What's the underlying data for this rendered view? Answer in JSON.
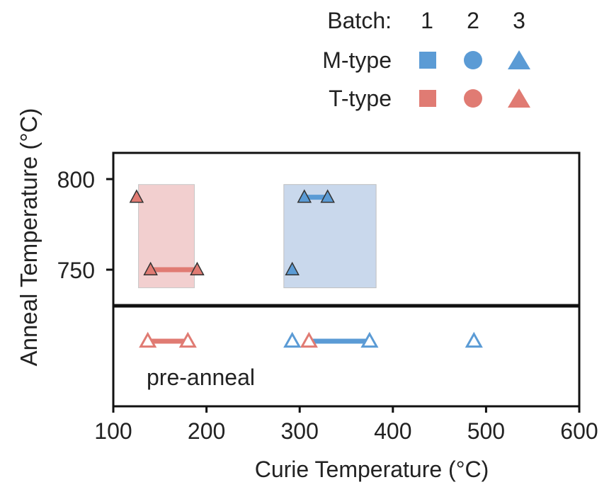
{
  "chart_data": {
    "type": "scatter",
    "xlabel": "Curie Temperature (°C)",
    "ylabel": "Anneal Temperature (°C)",
    "xlim": [
      100,
      600
    ],
    "x_ticks": [
      "100",
      "200",
      "300",
      "400",
      "500",
      "600"
    ],
    "y_ticks": [
      "800",
      "750"
    ],
    "annotation": "pre-anneal",
    "colors": {
      "M-type": "#5b9bd5",
      "T-type": "#e07b73"
    },
    "legend": {
      "placement": "top-right",
      "batch_label": "Batch:",
      "batches": [
        "1",
        "2",
        "3"
      ],
      "rows": [
        {
          "name": "M-type",
          "color": "#5b9bd5"
        },
        {
          "name": "T-type",
          "color": "#e07b73"
        }
      ],
      "markers": [
        "square",
        "circle",
        "triangle"
      ]
    },
    "series": [
      {
        "name": "T-type",
        "batch": "3",
        "color": "#e07b73",
        "points": [
          {
            "x": 125,
            "anneal": 790
          },
          {
            "x": 140,
            "anneal": 750
          },
          {
            "x": 190,
            "anneal": 750
          },
          {
            "x": 137,
            "anneal": "pre-anneal"
          },
          {
            "x": 180,
            "anneal": "pre-anneal"
          },
          {
            "x": 310,
            "anneal": "pre-anneal"
          }
        ],
        "ranges": [
          {
            "from": 140,
            "to": 190,
            "anneal": 750
          },
          {
            "from": 137,
            "to": 180,
            "anneal": "pre-anneal"
          }
        ],
        "shaded_region": {
          "x": [
            127,
            187
          ],
          "anneal": [
            740,
            797
          ]
        }
      },
      {
        "name": "M-type",
        "batch": "3",
        "color": "#5b9bd5",
        "points": [
          {
            "x": 305,
            "anneal": 790
          },
          {
            "x": 330,
            "anneal": 790
          },
          {
            "x": 292,
            "anneal": 750
          },
          {
            "x": 292,
            "anneal": "pre-anneal"
          },
          {
            "x": 375,
            "anneal": "pre-anneal"
          },
          {
            "x": 487,
            "anneal": "pre-anneal"
          }
        ],
        "ranges": [
          {
            "from": 305,
            "to": 330,
            "anneal": 790
          },
          {
            "from": 310,
            "to": 375,
            "anneal": "pre-anneal"
          }
        ],
        "shaded_region": {
          "x": [
            283,
            382
          ],
          "anneal": [
            740,
            797
          ]
        }
      }
    ]
  }
}
